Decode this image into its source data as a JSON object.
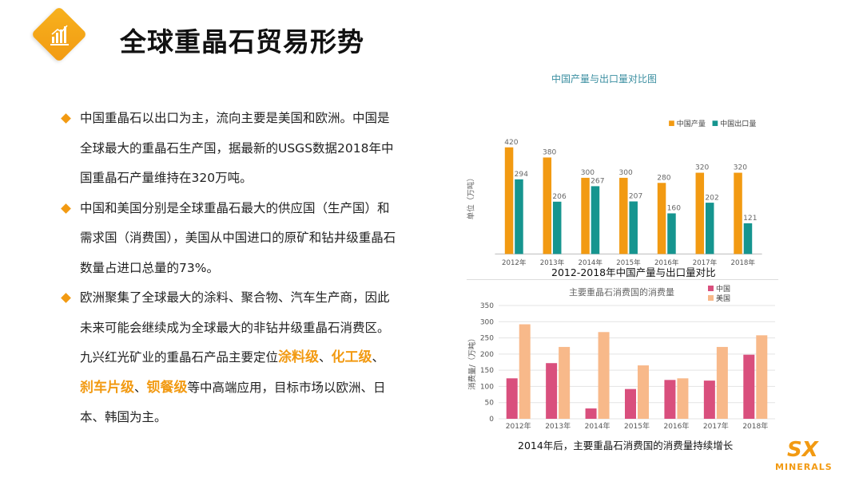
{
  "title": "全球重晶石贸易形势",
  "bullets": [
    {
      "parts": [
        {
          "t": "中国重晶石以出口为主，流向主要是美国和欧洲。中国是全球最大的重晶石生产国，据最新的USGS数据2018年中国重晶石产量维持在320万吨。",
          "hl": false
        }
      ]
    },
    {
      "parts": [
        {
          "t": "中国和美国分别是全球重晶石最大的供应国（生产国）和需求国（消费国），美国从中国进口的原矿和钻井级重晶石数量占进口总量的73%。",
          "hl": false
        }
      ]
    },
    {
      "parts": [
        {
          "t": "欧洲聚集了全球最大的涂料、聚合物、汽车生产商，因此未来可能会继续成为全球最大的非钻井级重晶石消费区。九兴红光矿业的重晶石产品主要定位",
          "hl": false
        },
        {
          "t": "涂料级",
          "hl": true
        },
        {
          "t": "、",
          "hl": false
        },
        {
          "t": "化工级",
          "hl": true
        },
        {
          "t": "、",
          "hl": false
        },
        {
          "t": "刹车片级",
          "hl": true
        },
        {
          "t": "、",
          "hl": false
        },
        {
          "t": "钡餐级",
          "hl": true
        },
        {
          "t": "等中高端应用，目标市场以欧洲、日本、韩国为主。",
          "hl": false
        }
      ]
    }
  ],
  "captions": {
    "chart1": "2012-2018年中国产量与出口量对比",
    "chart2": "2014年后，主要重晶石消费国的消费量持续增长"
  },
  "brand": {
    "name": "MINERALS",
    "mark": "SX"
  },
  "chart_data": [
    {
      "type": "bar",
      "title": "中国产量与出口量对比图",
      "ylabel": "单位（万吨）",
      "xlabel": "",
      "categories": [
        "2012年",
        "2013年",
        "2014年",
        "2015年",
        "2016年",
        "2017年",
        "2018年"
      ],
      "series": [
        {
          "name": "中国产量",
          "values": [
            420,
            380,
            300,
            300,
            280,
            320,
            320
          ],
          "color": "#f29a12"
        },
        {
          "name": "中国出口量",
          "values": [
            294,
            206,
            267,
            207,
            160,
            202,
            121
          ],
          "color": "#16958f"
        }
      ],
      "ylim": [
        0,
        450
      ],
      "grid": false,
      "data_labels": true,
      "legend": "top-right"
    },
    {
      "type": "bar",
      "title": "主要重晶石消费国的消费量",
      "ylabel": "消费量/（万吨）",
      "xlabel": "",
      "categories": [
        "2012年",
        "2013年",
        "2014年",
        "2015年",
        "2016年",
        "2017年",
        "2018年"
      ],
      "series": [
        {
          "name": "中国",
          "values": [
            125,
            172,
            32,
            92,
            120,
            118,
            198
          ],
          "color": "#d94f7d"
        },
        {
          "name": "美国",
          "values": [
            292,
            222,
            268,
            165,
            125,
            222,
            258
          ],
          "color": "#f8b98a"
        }
      ],
      "ylim": [
        0,
        350
      ],
      "yticks": [
        0,
        50,
        100,
        150,
        200,
        250,
        300,
        350
      ],
      "grid": true,
      "data_labels": false,
      "legend": "top-right"
    }
  ]
}
